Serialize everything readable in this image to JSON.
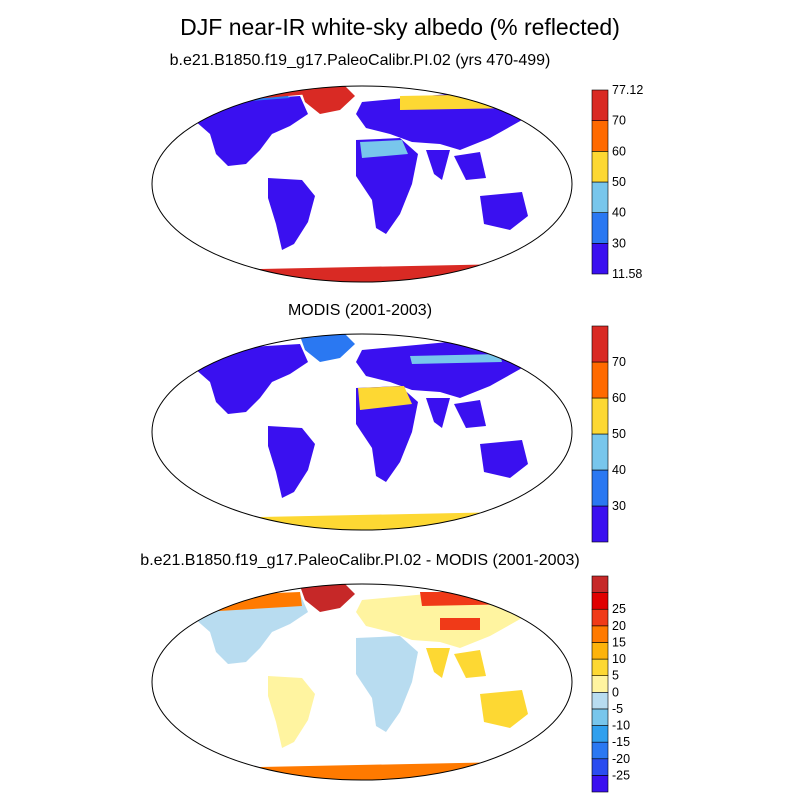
{
  "title": "DJF near-IR white-sky albedo (% reflected)",
  "panels": [
    {
      "id": "model",
      "title": "b.e21.B1850.f19_g17.PaleoCalibr.PI.02 (yrs 470-499)",
      "colorbar": {
        "colors": [
          "#3a10f0",
          "#2a78f2",
          "#78c6ec",
          "#fdd833",
          "#ff6a00",
          "#d92a24"
        ],
        "labels": [
          "11.58",
          "30",
          "40",
          "50",
          "60",
          "70",
          "77.12"
        ]
      }
    },
    {
      "id": "obs",
      "title": "MODIS (2001-2003)",
      "colorbar": {
        "colors": [
          "#3a10f0",
          "#2a78f2",
          "#78c6ec",
          "#fdd833",
          "#ff6a00",
          "#d92a24"
        ],
        "labels": [
          "30",
          "40",
          "50",
          "60",
          "70"
        ]
      }
    },
    {
      "id": "diff",
      "title": "b.e21.B1850.f19_g17.PaleoCalibr.PI.02 - MODIS (2001-2003)",
      "colorbar": {
        "colors": [
          "#3a10f0",
          "#2a4cf0",
          "#2a78f2",
          "#30a0ee",
          "#78c6ec",
          "#b8dcf0",
          "#fff4a0",
          "#fdd833",
          "#fdb30b",
          "#ff7a00",
          "#f03a18",
          "#e00000",
          "#c62828"
        ],
        "labels": [
          "-25",
          "-20",
          "-15",
          "-10",
          "-5",
          "0",
          "5",
          "10",
          "15",
          "20",
          "25"
        ]
      }
    }
  ]
}
